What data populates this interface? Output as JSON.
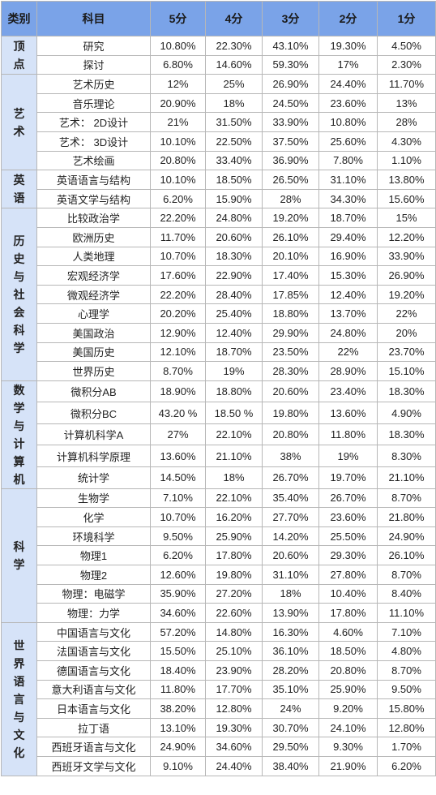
{
  "table": {
    "headers": [
      "类别",
      "科目",
      "5分",
      "4分",
      "3分",
      "2分",
      "1分"
    ],
    "groups": [
      {
        "category": "顶点",
        "rows": [
          {
            "subject": "研究",
            "scores": [
              "10.80%",
              "22.30%",
              "43.10%",
              "19.30%",
              "4.50%"
            ]
          },
          {
            "subject": "探讨",
            "scores": [
              "6.80%",
              "14.60%",
              "59.30%",
              "17%",
              "2.30%"
            ]
          }
        ]
      },
      {
        "category": "艺术",
        "rows": [
          {
            "subject": "艺术历史",
            "scores": [
              "12%",
              "25%",
              "26.90%",
              "24.40%",
              "11.70%"
            ]
          },
          {
            "subject": "音乐理论",
            "scores": [
              "20.90%",
              "18%",
              "24.50%",
              "23.60%",
              "13%"
            ]
          },
          {
            "subject": "艺术： 2D设计",
            "scores": [
              "21%",
              "31.50%",
              "33.90%",
              "10.80%",
              "28%"
            ]
          },
          {
            "subject": "艺术： 3D设计",
            "scores": [
              "10.10%",
              "22.50%",
              "37.50%",
              "25.60%",
              "4.30%"
            ]
          },
          {
            "subject": "艺术绘画",
            "scores": [
              "20.80%",
              "33.40%",
              "36.90%",
              "7.80%",
              "1.10%"
            ]
          }
        ]
      },
      {
        "category": "英语",
        "rows": [
          {
            "subject": "英语语言与结构",
            "scores": [
              "10.10%",
              "18.50%",
              "26.50%",
              "31.10%",
              "13.80%"
            ]
          },
          {
            "subject": "英语文学与结构",
            "scores": [
              "6.20%",
              "15.90%",
              "28%",
              "34.30%",
              "15.60%"
            ]
          }
        ]
      },
      {
        "category": "历史与社会科学",
        "rows": [
          {
            "subject": "比较政治学",
            "scores": [
              "22.20%",
              "24.80%",
              "19.20%",
              "18.70%",
              "15%"
            ]
          },
          {
            "subject": "欧洲历史",
            "scores": [
              "11.70%",
              "20.60%",
              "26.10%",
              "29.40%",
              "12.20%"
            ]
          },
          {
            "subject": "人类地理",
            "scores": [
              "10.70%",
              "18.30%",
              "20.10%",
              "16.90%",
              "33.90%"
            ]
          },
          {
            "subject": "宏观经济学",
            "scores": [
              "17.60%",
              "22.90%",
              "17.40%",
              "15.30%",
              "26.90%"
            ]
          },
          {
            "subject": "微观经济学",
            "scores": [
              "22.20%",
              "28.40%",
              "17.85%",
              "12.40%",
              "19.20%"
            ]
          },
          {
            "subject": "心理学",
            "scores": [
              "20.20%",
              "25.40%",
              "18.80%",
              "13.70%",
              "22%"
            ]
          },
          {
            "subject": "美国政治",
            "scores": [
              "12.90%",
              "12.40%",
              "29.90%",
              "24.80%",
              "20%"
            ]
          },
          {
            "subject": "美国历史",
            "scores": [
              "12.10%",
              "18.70%",
              "23.50%",
              "22%",
              "23.70%"
            ]
          },
          {
            "subject": "世界历史",
            "scores": [
              "8.70%",
              "19%",
              "28.30%",
              "28.90%",
              "15.10%"
            ]
          }
        ]
      },
      {
        "category": "数学与计算机",
        "rows": [
          {
            "subject": "微积分AB",
            "scores": [
              "18.90%",
              "18.80%",
              "20.60%",
              "23.40%",
              "18.30%"
            ]
          },
          {
            "subject": "微积分BC",
            "scores": [
              "43.20 %",
              "18.50 %",
              "19.80%",
              "13.60%",
              "4.90%"
            ]
          },
          {
            "subject": "计算机科学A",
            "scores": [
              "27%",
              "22.10%",
              "20.80%",
              "11.80%",
              "18.30%"
            ]
          },
          {
            "subject": "计算机科学原理",
            "scores": [
              "13.60%",
              "21.10%",
              "38%",
              "19%",
              "8.30%"
            ]
          },
          {
            "subject": "统计学",
            "scores": [
              "14.50%",
              "18%",
              "26.70%",
              "19.70%",
              "21.10%"
            ]
          }
        ]
      },
      {
        "category": "科学",
        "rows": [
          {
            "subject": "生物学",
            "scores": [
              "7.10%",
              "22.10%",
              "35.40%",
              "26.70%",
              "8.70%"
            ]
          },
          {
            "subject": "化学",
            "scores": [
              "10.70%",
              "16.20%",
              "27.70%",
              "23.60%",
              "21.80%"
            ]
          },
          {
            "subject": "环境科学",
            "scores": [
              "9.50%",
              "25.90%",
              "14.20%",
              "25.50%",
              "24.90%"
            ]
          },
          {
            "subject": "物理1",
            "scores": [
              "6.20%",
              "17.80%",
              "20.60%",
              "29.30%",
              "26.10%"
            ]
          },
          {
            "subject": "物理2",
            "scores": [
              "12.60%",
              "19.80%",
              "31.10%",
              "27.80%",
              "8.70%"
            ]
          },
          {
            "subject": "物理：电磁学",
            "scores": [
              "35.90%",
              "27.20%",
              "18%",
              "10.40%",
              "8.40%"
            ]
          },
          {
            "subject": "物理：力学",
            "scores": [
              "34.60%",
              "22.60%",
              "13.90%",
              "17.80%",
              "11.10%"
            ]
          }
        ]
      },
      {
        "category": "世界语言与文化",
        "rows": [
          {
            "subject": "中国语言与文化",
            "scores": [
              "57.20%",
              "14.80%",
              "16.30%",
              "4.60%",
              "7.10%"
            ]
          },
          {
            "subject": "法国语言与文化",
            "scores": [
              "15.50%",
              "25.10%",
              "36.10%",
              "18.50%",
              "4.80%"
            ]
          },
          {
            "subject": "德国语言与文化",
            "scores": [
              "18.40%",
              "23.90%",
              "28.20%",
              "20.80%",
              "8.70%"
            ]
          },
          {
            "subject": "意大利语言与文化",
            "scores": [
              "11.80%",
              "17.70%",
              "35.10%",
              "25.90%",
              "9.50%"
            ]
          },
          {
            "subject": "日本语言与文化",
            "scores": [
              "38.20%",
              "12.80%",
              "24%",
              "9.20%",
              "15.80%"
            ]
          },
          {
            "subject": "拉丁语",
            "scores": [
              "13.10%",
              "19.30%",
              "30.70%",
              "24.10%",
              "12.80%"
            ]
          },
          {
            "subject": "西班牙语言与文化",
            "scores": [
              "24.90%",
              "34.60%",
              "29.50%",
              "9.30%",
              "1.70%"
            ]
          },
          {
            "subject": "西班牙文学与文化",
            "scores": [
              "9.10%",
              "24.40%",
              "38.40%",
              "21.90%",
              "6.20%"
            ]
          }
        ]
      }
    ]
  },
  "colors": {
    "header_bg": "#7aa3e8",
    "category_bg": "#d6e3f8",
    "border": "#b7b7b7"
  }
}
